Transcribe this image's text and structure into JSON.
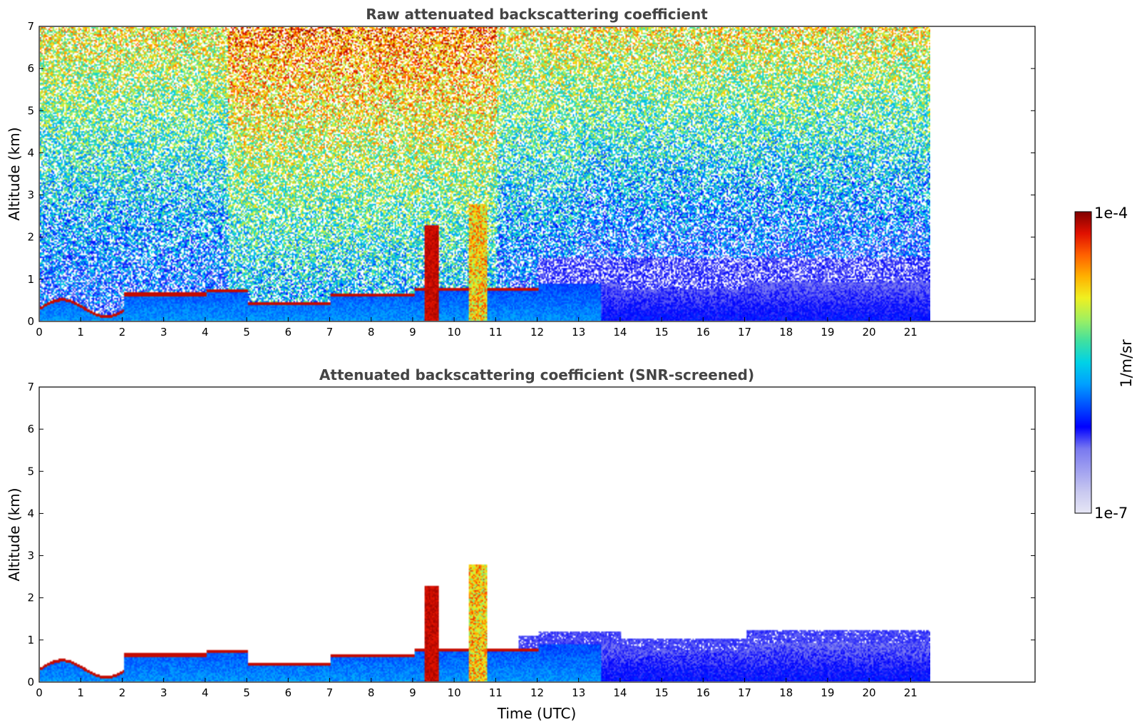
{
  "figure": {
    "colorbar": {
      "max_label": "1e-4",
      "min_label": "1e-7",
      "unit_label": "1/m/sr",
      "scale": "log",
      "colormap": "jet",
      "colors": [
        "#e6e6f5",
        "#c8c8f0",
        "#a0a0f0",
        "#7878f0",
        "#0000ff",
        "#0050ff",
        "#00a0ff",
        "#00d2e6",
        "#40e0a0",
        "#a0f060",
        "#f0f020",
        "#ffb000",
        "#ff6000",
        "#e01000",
        "#800000"
      ]
    }
  },
  "chart_data": [
    {
      "type": "heatmap",
      "title": "Raw attenuated backscattering coefficient",
      "xlabel": "",
      "ylabel": "Altitude (km)",
      "xlim": [
        0,
        24
      ],
      "ylim": [
        0,
        7
      ],
      "xticks": [
        "0",
        "1",
        "2",
        "3",
        "4",
        "5",
        "6",
        "7",
        "8",
        "9",
        "10",
        "11",
        "12",
        "13",
        "14",
        "15",
        "16",
        "17",
        "18",
        "19",
        "20",
        "21"
      ],
      "yticks": [
        "0",
        "1",
        "2",
        "3",
        "4",
        "5",
        "6",
        "7"
      ],
      "data_end_time": 21.45,
      "grid": false
    },
    {
      "type": "heatmap",
      "title": "Attenuated backscattering coefficient (SNR-screened)",
      "xlabel": "Time (UTC)",
      "ylabel": "Altitude (km)",
      "xlim": [
        0,
        24
      ],
      "ylim": [
        0,
        7
      ],
      "xticks": [
        "0",
        "1",
        "2",
        "3",
        "4",
        "5",
        "6",
        "7",
        "8",
        "9",
        "10",
        "11",
        "12",
        "13",
        "14",
        "15",
        "16",
        "17",
        "18",
        "19",
        "20",
        "21"
      ],
      "yticks": [
        "0",
        "1",
        "2",
        "3",
        "4",
        "5",
        "6",
        "7"
      ],
      "data_end_time": 21.45,
      "grid": false
    }
  ]
}
